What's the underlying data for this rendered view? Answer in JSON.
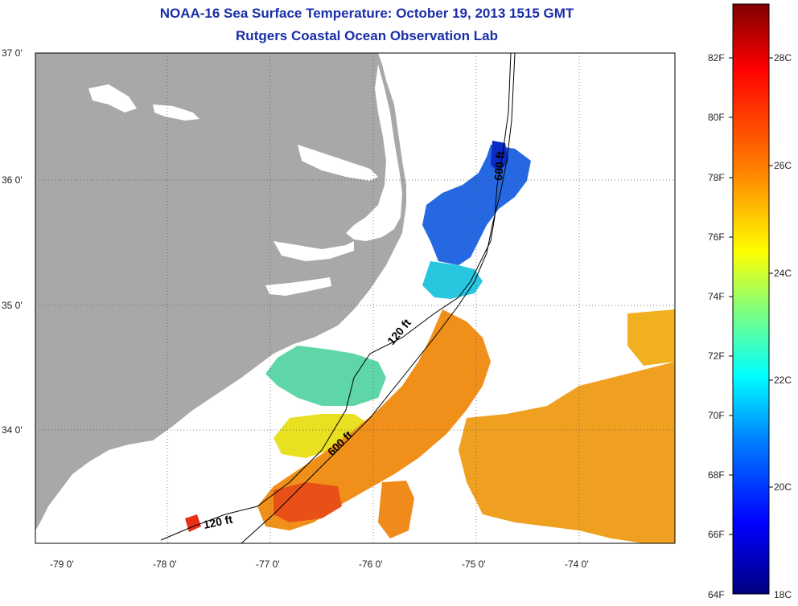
{
  "title": {
    "line1": "NOAA-16 Sea Surface Temperature:  October 19, 2013 1515 GMT",
    "line2": "Rutgers Coastal Ocean Observation Lab"
  },
  "map": {
    "lat_ticks": [
      "37 0'",
      "36 0'",
      "35 0'",
      "34 0'"
    ],
    "lon_ticks": [
      "-79 0'",
      "-78 0'",
      "-77 0'",
      "-76 0'",
      "-75 0'",
      "-74 0'"
    ],
    "contour_labels": [
      "120 ft",
      "600 ft",
      "600 ft",
      "120 ft"
    ],
    "land_color": "#a8a8a8"
  },
  "colorbar": {
    "f_labels": [
      "82F",
      "80F",
      "78F",
      "76F",
      "74F",
      "72F",
      "70F",
      "68F",
      "66F",
      "64F"
    ],
    "c_labels": [
      "28C",
      "26C",
      "24C",
      "22C",
      "20C",
      "18C"
    ],
    "stops": [
      "#7f0000",
      "#ff0000",
      "#ff7f00",
      "#ffff00",
      "#7fff7f",
      "#00ffff",
      "#007fff",
      "#0000ff",
      "#00007f"
    ]
  }
}
